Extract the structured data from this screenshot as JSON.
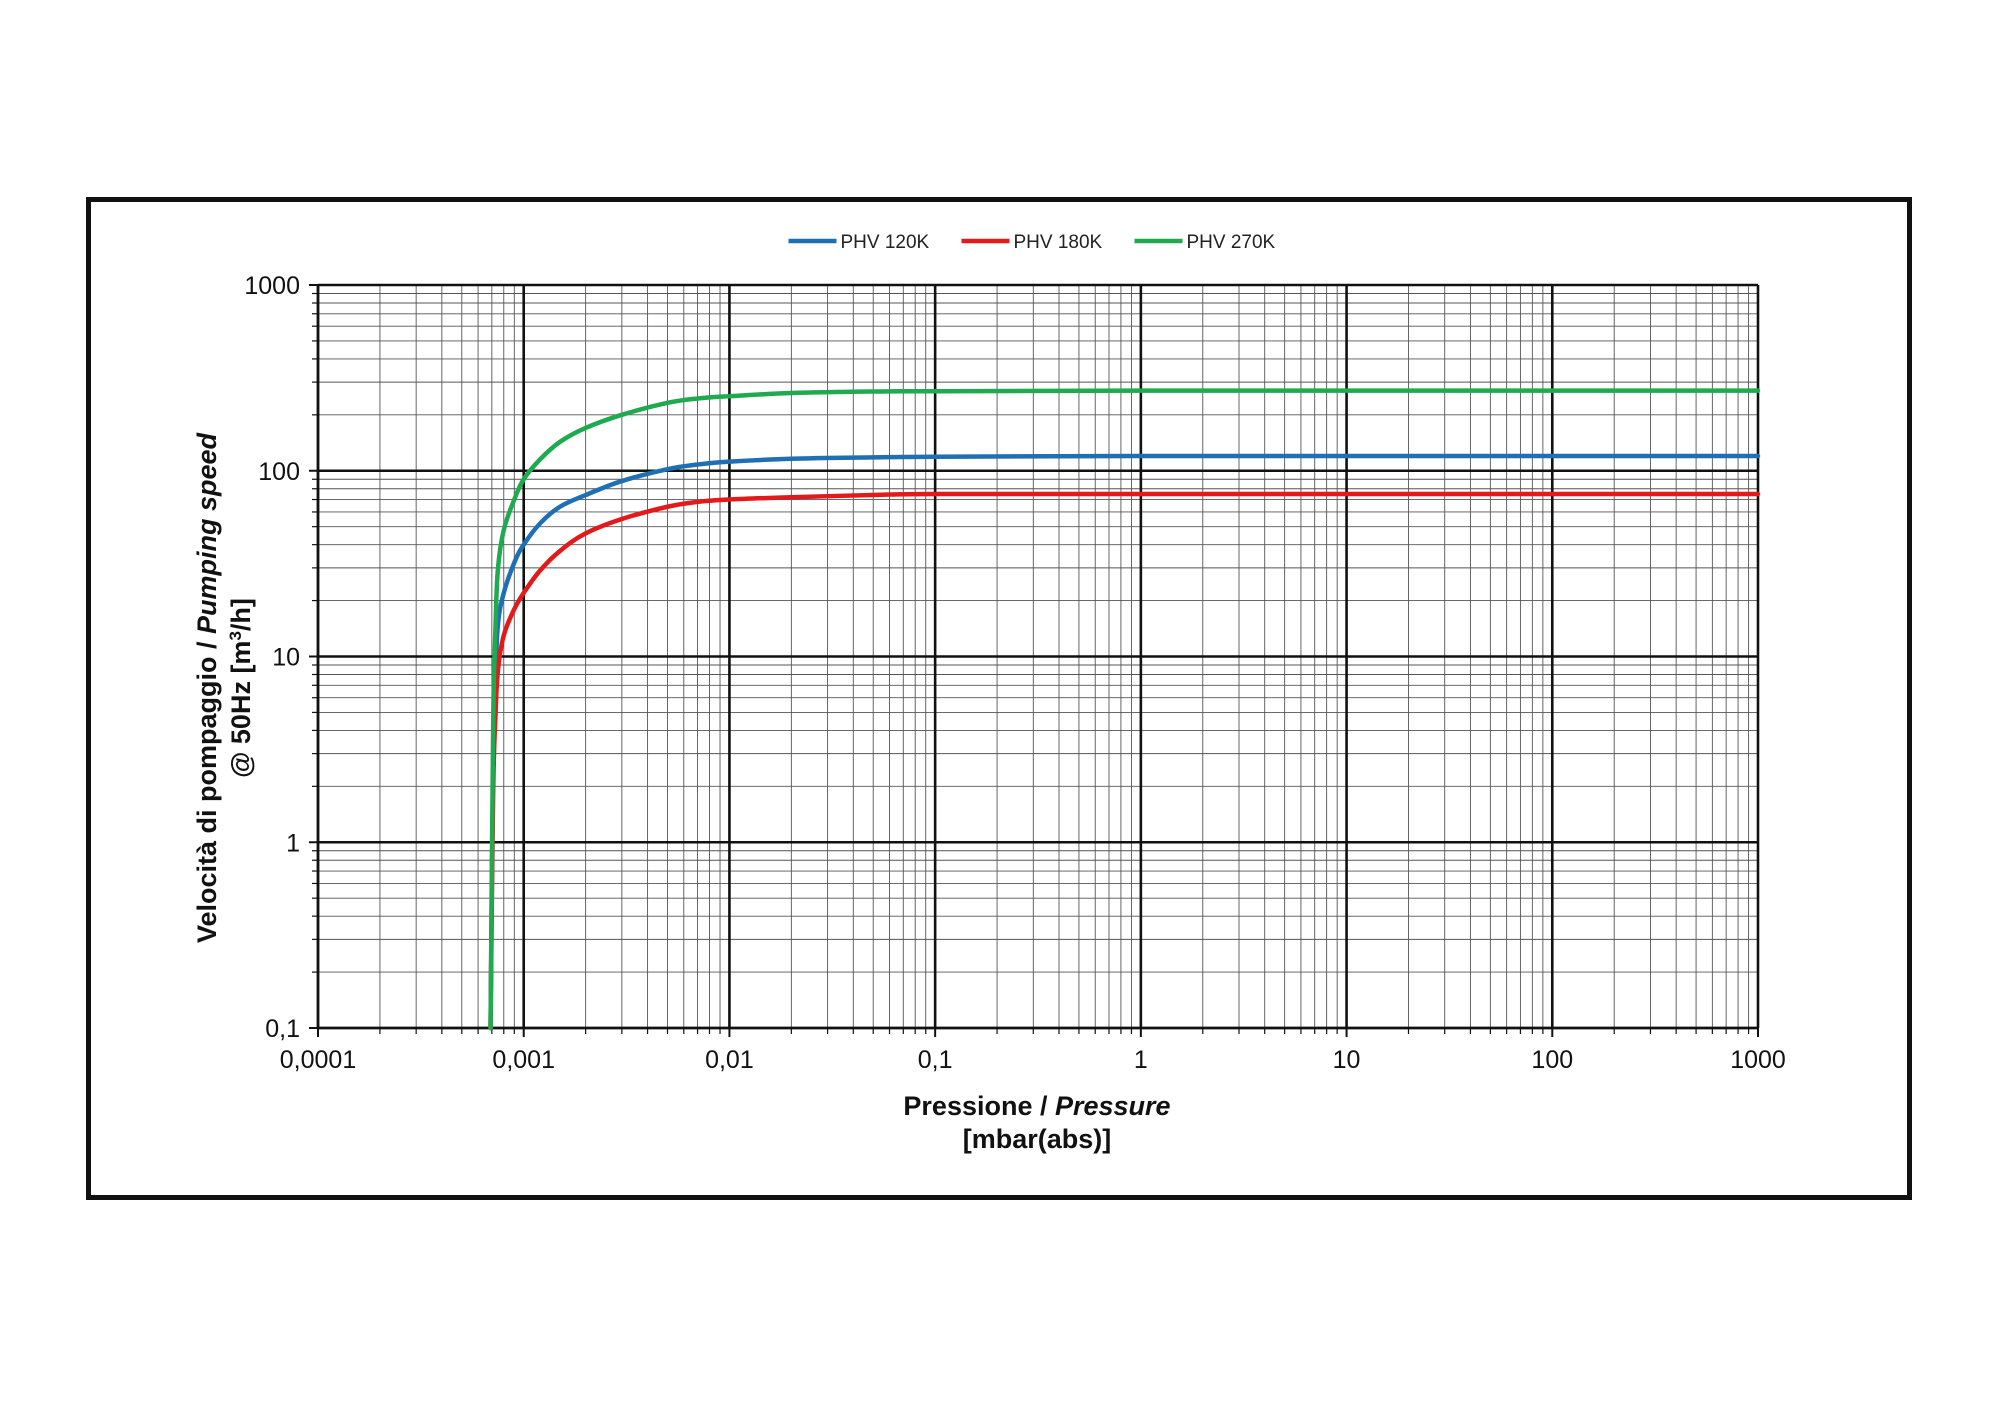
{
  "chart_data": {
    "type": "line",
    "title": "",
    "xscale": "log",
    "yscale": "log",
    "xlim": [
      0.0001,
      1000
    ],
    "ylim": [
      0.1,
      1000
    ],
    "grid": true,
    "legend_position": "top-center",
    "x_ticks": [
      "0,0001",
      "0,001",
      "0,01",
      "0,1",
      "1",
      "10",
      "100",
      "1000"
    ],
    "y_ticks": [
      "0,1",
      "1",
      "10",
      "100",
      "1000"
    ],
    "xlabel": {
      "line1_regular": "Pressione / ",
      "line1_italic": "Pressure",
      "line2": "[mbar(abs)]"
    },
    "ylabel": {
      "line1_regular": "Velocità di pompaggio / ",
      "line1_italic": "Pumping speed",
      "line2_prefix": "@ 50Hz [m",
      "line2_sup": "3",
      "line2_suffix": "/h]"
    },
    "series": [
      {
        "name": "PHV 120K",
        "color": "#1f6fb4",
        "x": [
          0.00069,
          0.00071,
          0.00073,
          0.00075,
          0.0008,
          0.0009,
          0.001,
          0.0012,
          0.0015,
          0.002,
          0.003,
          0.005,
          0.007,
          0.01,
          0.02,
          0.05,
          0.1,
          1,
          10,
          100,
          1000
        ],
        "y": [
          0.1,
          2.5,
          8,
          15,
          22,
          32,
          40,
          52,
          64,
          74,
          88,
          102,
          108,
          112,
          116,
          118,
          119,
          120,
          120,
          120,
          120
        ]
      },
      {
        "name": "PHV 180K",
        "color": "#e3191b",
        "x": [
          0.00069,
          0.00071,
          0.00073,
          0.00075,
          0.0008,
          0.0009,
          0.001,
          0.0012,
          0.0015,
          0.002,
          0.003,
          0.005,
          0.007,
          0.01,
          0.02,
          0.05,
          0.1,
          1,
          10,
          100,
          1000
        ],
        "y": [
          0.1,
          1.8,
          5,
          8.5,
          13,
          18,
          22,
          29,
          37,
          46,
          55,
          64,
          68,
          70,
          72,
          74,
          75,
          75,
          75,
          75,
          75
        ]
      },
      {
        "name": "PHV 270K",
        "color": "#1faa4f",
        "x": [
          0.00069,
          0.00071,
          0.00073,
          0.00075,
          0.0008,
          0.0009,
          0.001,
          0.0012,
          0.0015,
          0.002,
          0.003,
          0.005,
          0.007,
          0.01,
          0.02,
          0.05,
          0.1,
          1,
          10,
          100,
          1000
        ],
        "y": [
          0.1,
          4,
          15,
          30,
          48,
          70,
          90,
          115,
          143,
          170,
          200,
          232,
          245,
          252,
          262,
          267,
          268,
          270,
          270,
          270,
          270
        ]
      }
    ]
  }
}
